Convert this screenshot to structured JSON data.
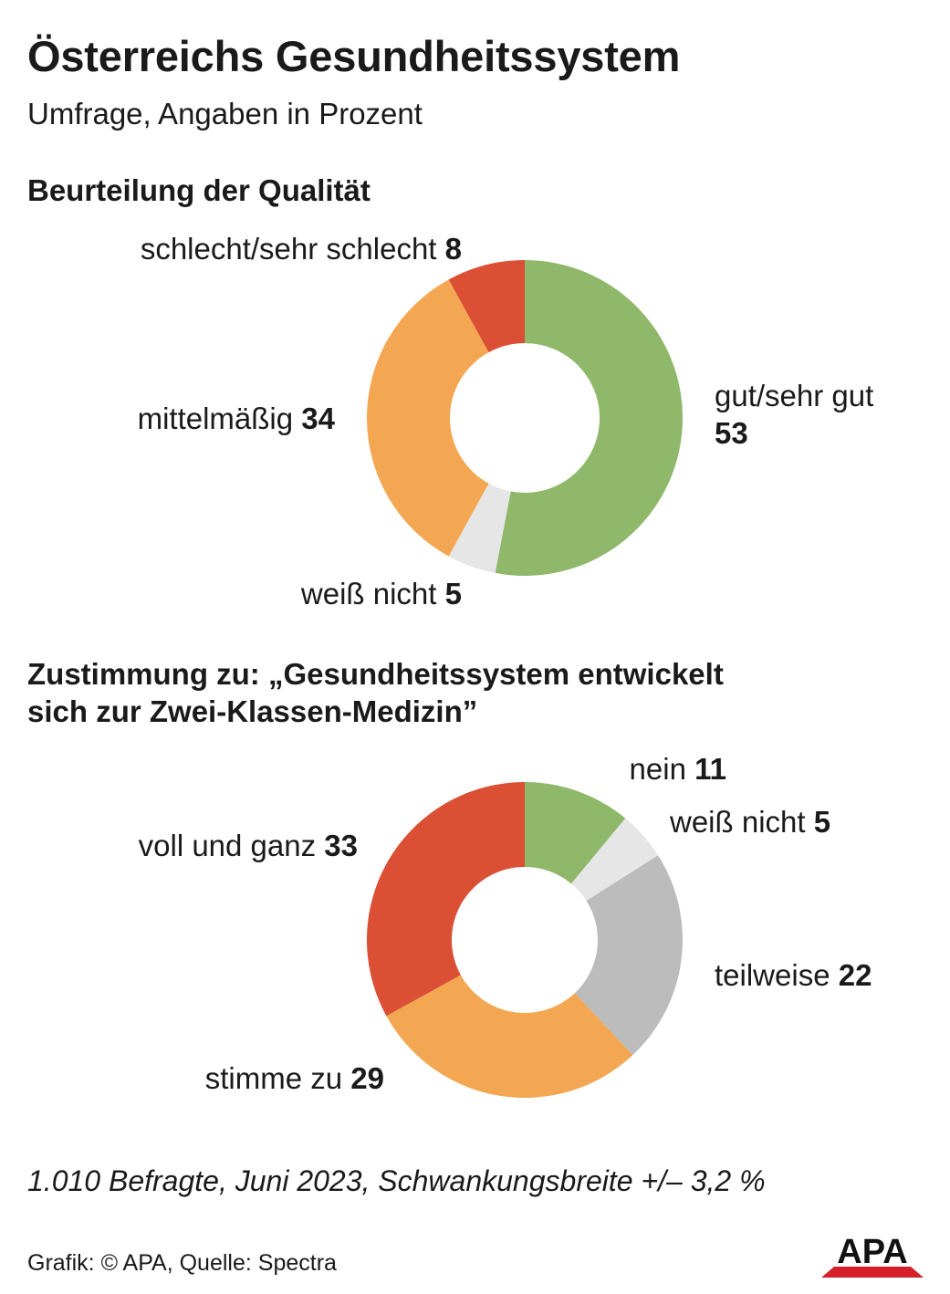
{
  "title": "Österreichs Gesundheitssystem",
  "subtitle": "Umfrage, Angaben in Prozent",
  "chart_data": [
    {
      "type": "pie",
      "title": "Beurteilung der Qualität",
      "categories": [
        "gut/sehr gut",
        "weiß nicht",
        "mittelmäßig",
        "schlecht/sehr schlecht"
      ],
      "values": [
        53,
        5,
        34,
        8
      ],
      "colors": [
        "#8fb86a",
        "#e6e6e6",
        "#f3a753",
        "#db5035"
      ]
    },
    {
      "type": "pie",
      "title": "Zustimmung zu: „Gesundheitssystem entwickelt sich zur Zwei-Klassen-Medizin”",
      "title_line1": "Zustimmung zu: „Gesundheitssystem entwickelt",
      "title_line2": "sich zur Zwei-Klassen-Medizin”",
      "categories": [
        "nein",
        "weiß nicht",
        "teilweise",
        "stimme zu",
        "voll und ganz"
      ],
      "values": [
        11,
        5,
        22,
        29,
        33
      ],
      "colors": [
        "#8fb86a",
        "#e6e6e6",
        "#bcbcbc",
        "#f3a753",
        "#db5035"
      ]
    }
  ],
  "footnote": "1.010 Befragte, Juni 2023, Schwankungsbreite +/– 3,2 %",
  "source": "Grafik: © APA, Quelle: Spectra",
  "logo_text": "APA"
}
